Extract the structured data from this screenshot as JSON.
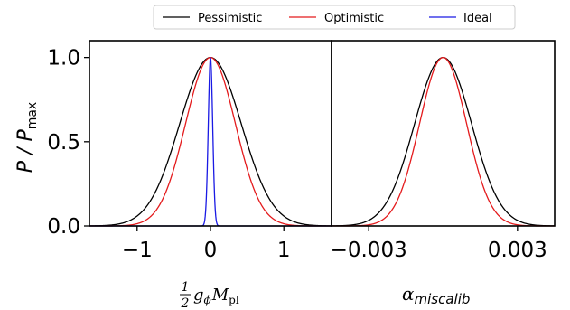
{
  "chart_data": [
    {
      "type": "line",
      "panel": "left",
      "title": "",
      "ylabel": "P / P_max",
      "xlim": [
        -1.65,
        1.65
      ],
      "ylim": [
        0,
        1.1
      ],
      "xticks": [
        {
          "value": -1,
          "label": "−1"
        },
        {
          "value": 0,
          "label": "0"
        },
        {
          "value": 1,
          "label": "1"
        }
      ],
      "yticks": [
        {
          "value": 0.0,
          "label": "0.0"
        },
        {
          "value": 0.5,
          "label": "0.5"
        },
        {
          "value": 1.0,
          "label": "1.0"
        }
      ],
      "xlabel": {
        "frac_num": "1",
        "frac_den": "2",
        "symbol": "g",
        "sub": "ϕ",
        "symbol2": "M",
        "sub2": "pl"
      },
      "series": [
        {
          "name": "Pessimistic",
          "color": "#000000",
          "shape": "gaussian",
          "mean": 0.0,
          "sigma": 0.42
        },
        {
          "name": "Optimistic",
          "color": "#e41a1c",
          "shape": "gaussian",
          "mean": 0.0,
          "sigma": 0.34
        },
        {
          "name": "Ideal",
          "color": "#1a1ae4",
          "shape": "gaussian",
          "mean": 0.0,
          "sigma": 0.03
        }
      ]
    },
    {
      "type": "line",
      "panel": "right",
      "title": "",
      "xlim": [
        -0.0045,
        0.0045
      ],
      "ylim": [
        0,
        1.1
      ],
      "xticks": [
        {
          "value": -0.003,
          "label": "−0.003"
        },
        {
          "value": 0.003,
          "label": "0.003"
        }
      ],
      "xlabel": {
        "symbol": "α",
        "sub": "miscalib"
      },
      "series": [
        {
          "name": "Pessimistic",
          "color": "#000000",
          "shape": "gaussian",
          "mean": 0.0,
          "sigma": 0.00115
        },
        {
          "name": "Optimistic",
          "color": "#e41a1c",
          "shape": "gaussian",
          "mean": 0.0,
          "sigma": 0.00095
        }
      ]
    }
  ],
  "legend": {
    "placement": "top-center",
    "entries": [
      {
        "label": "Pessimistic",
        "color": "#000000"
      },
      {
        "label": "Optimistic",
        "color": "#e41a1c"
      },
      {
        "label": "Ideal",
        "color": "#1a1ae4"
      }
    ]
  },
  "ylabel_parts": {
    "main": "P / P",
    "sub": "max"
  }
}
